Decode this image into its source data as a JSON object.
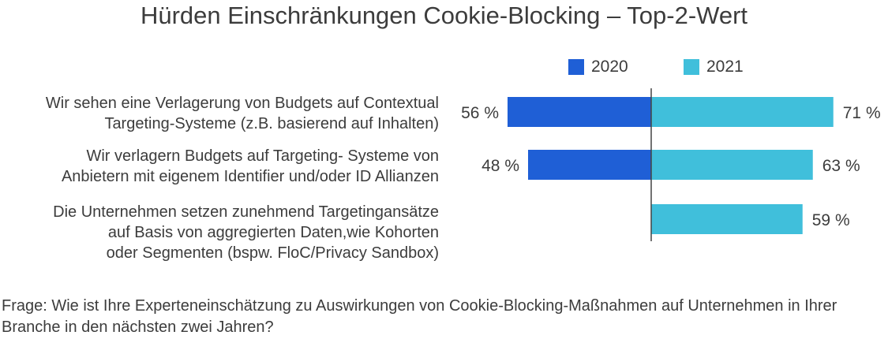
{
  "chart_data": {
    "type": "bar",
    "orientation": "horizontal-diverging",
    "title": "Hürden Einschränkungen Cookie-Blocking – Top-2-Wert",
    "categories": [
      [
        "Wir sehen eine Verlagerung von Budgets auf Contextual",
        "Targeting-Systeme (z.B. basierend auf Inhalten)"
      ],
      [
        "Wir verlagern Budgets auf Targeting- Systeme von",
        "Anbietern mit eigenem Identifier und/oder ID Allianzen"
      ],
      [
        "Die Unternehmen setzen zunehmend Targetingansätze",
        "auf Basis von aggregierten Daten,wie Kohorten",
        "oder Segmenten (bspw. FloC/Privacy Sandbox)"
      ]
    ],
    "series": [
      {
        "name": "2020",
        "color": "#1f5fd6",
        "values": [
          56,
          48,
          null
        ],
        "labels": [
          "56 %",
          "48 %",
          ""
        ]
      },
      {
        "name": "2021",
        "color": "#40bfdb",
        "values": [
          71,
          63,
          59
        ],
        "labels": [
          "71 %",
          "63 %",
          "59 %"
        ]
      }
    ],
    "legend_position": "top",
    "grid": false
  },
  "footnote": "Frage: Wie ist Ihre Experteneinschätzung zu Auswirkungen von Cookie-Blocking-Maßnahmen auf Unternehmen in Ihrer Branche in den nächsten zwei Jahren?"
}
